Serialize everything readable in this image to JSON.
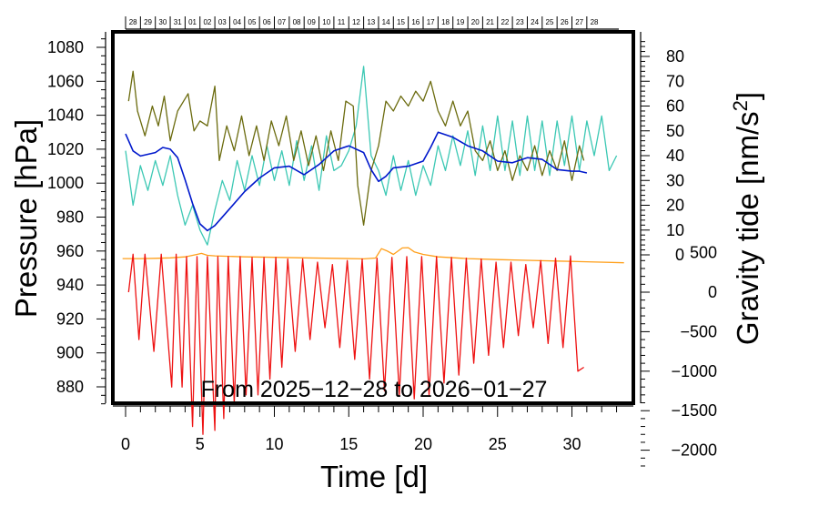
{
  "chart_data": {
    "type": "line",
    "title": "",
    "annotation": "From 2025−12−28 to 2026−01−27",
    "xlabel": "Time [d]",
    "ylabel_left": "Pressure [hPa]",
    "ylabel_right": "Gravity tide [nm/s2]",
    "xlim": [
      -0.6,
      33.6
    ],
    "x_ticks": [
      "0",
      "5",
      "10",
      "15",
      "20",
      "25",
      "30"
    ],
    "date_ticks": [
      "28",
      "29",
      "30",
      "31",
      "01",
      "02",
      "03",
      "04",
      "05",
      "06",
      "07",
      "08",
      "09",
      "10",
      "11",
      "12",
      "13",
      "14",
      "15",
      "16",
      "17",
      "18",
      "19",
      "20",
      "21",
      "22",
      "23",
      "24",
      "25",
      "26",
      "27",
      "28"
    ],
    "left_axis": {
      "ylim": [
        868,
        1088
      ],
      "ticks": [
        "880",
        "900",
        "920",
        "940",
        "960",
        "980",
        "1000",
        "1020",
        "1040",
        "1060",
        "1080"
      ]
    },
    "right_axis_upper": {
      "ylim": [
        0,
        80
      ],
      "ticks": [
        "0",
        "10",
        "20",
        "30",
        "40",
        "50",
        "60",
        "70",
        "80"
      ]
    },
    "right_axis_lower": {
      "ylim": [
        -2000,
        500
      ],
      "ticks": [
        "500",
        "0",
        "−500",
        "−1000",
        "−1500",
        "−2000"
      ]
    },
    "colors": {
      "pressure": "#0018cc",
      "noise_olive": "#6b6b0e",
      "noise_teal": "#3cc8b4",
      "orange": "#ff9f1a",
      "tide": "#ee1111",
      "frame": "#000000"
    },
    "series": [
      {
        "name": "pressure",
        "axis": "left",
        "x": [
          0,
          0.5,
          1,
          1.5,
          2,
          2.5,
          3,
          3.5,
          4,
          4.5,
          5,
          5.5,
          6,
          7,
          8,
          9,
          10,
          11,
          12,
          13,
          14,
          15,
          16,
          16.5,
          17,
          17.5,
          18,
          19,
          20,
          20.5,
          21,
          22,
          23,
          24,
          25,
          26,
          27,
          28,
          29,
          30,
          30.5,
          31
        ],
        "values": [
          1029,
          1019,
          1016,
          1017,
          1018,
          1021,
          1020,
          1015,
          1002,
          988,
          976,
          972,
          975,
          985,
          995,
          1003,
          1009,
          1010,
          1005,
          1011,
          1019,
          1022,
          1018,
          1008,
          1001,
          1004,
          1009,
          1010,
          1013,
          1021,
          1030,
          1027,
          1022,
          1019,
          1013,
          1012,
          1015,
          1014,
          1008,
          1007,
          1007,
          1006
        ]
      },
      {
        "name": "noise_olive",
        "axis": "right_upper",
        "x": [
          0.2,
          0.5,
          0.8,
          1.3,
          1.8,
          2.2,
          2.6,
          3,
          3.5,
          4.2,
          4.6,
          5,
          5.5,
          6,
          6.3,
          6.8,
          7.3,
          7.8,
          8.3,
          8.8,
          9.3,
          9.8,
          10.3,
          10.8,
          11.3,
          11.8,
          12.3,
          12.8,
          13.3,
          13.8,
          14.3,
          14.8,
          15.3,
          15.6,
          16,
          16.5,
          17,
          17.5,
          18,
          18.5,
          19,
          19.5,
          20,
          20.5,
          21,
          21.5,
          22,
          22.5,
          23,
          23.5,
          24,
          24.5,
          25,
          25.5,
          26,
          26.5,
          27,
          27.5,
          28,
          28.5,
          29,
          29.5,
          30,
          30.5,
          30.8
        ],
        "values": [
          62,
          74,
          58,
          48,
          60,
          52,
          64,
          46,
          58,
          65,
          50,
          54,
          52,
          68,
          38,
          52,
          42,
          56,
          40,
          52,
          38,
          54,
          44,
          56,
          38,
          50,
          36,
          48,
          34,
          50,
          38,
          62,
          60,
          28,
          12,
          34,
          44,
          62,
          58,
          64,
          60,
          66,
          62,
          70,
          58,
          52,
          62,
          52,
          58,
          42,
          38,
          46,
          34,
          42,
          30,
          40,
          34,
          44,
          32,
          42,
          34,
          46,
          30,
          44,
          38
        ]
      },
      {
        "name": "noise_teal",
        "axis": "right_upper",
        "x": [
          0,
          0.5,
          1,
          1.5,
          2,
          2.5,
          3,
          3.5,
          4,
          4.5,
          5,
          5.5,
          6,
          6.5,
          7,
          7.5,
          8,
          8.5,
          9,
          9.5,
          10,
          10.5,
          11,
          11.5,
          12,
          12.5,
          13,
          13.5,
          14,
          14.5,
          15,
          15.5,
          16,
          16.5,
          17,
          17.5,
          18,
          18.5,
          19,
          19.5,
          20,
          20.5,
          21,
          21.5,
          22,
          22.5,
          23,
          23.5,
          24,
          24.5,
          25,
          25.5,
          26,
          26.5,
          27,
          27.5,
          28,
          28.5,
          29,
          29.5,
          30,
          30.5,
          31,
          31.5,
          32,
          32.5,
          33
        ],
        "values": [
          42,
          20,
          36,
          26,
          38,
          28,
          40,
          24,
          12,
          20,
          10,
          4,
          18,
          30,
          22,
          38,
          26,
          40,
          28,
          44,
          30,
          42,
          28,
          46,
          30,
          44,
          26,
          48,
          34,
          36,
          42,
          52,
          76,
          40,
          34,
          24,
          40,
          26,
          38,
          24,
          36,
          28,
          44,
          34,
          48,
          36,
          50,
          32,
          52,
          34,
          56,
          34,
          54,
          32,
          56,
          34,
          54,
          32,
          54,
          36,
          56,
          34,
          54,
          40,
          56,
          34,
          40
        ]
      },
      {
        "name": "orange",
        "axis": "right_upper",
        "x": [
          -0.2,
          1,
          2,
          3,
          4,
          4.8,
          5.1,
          5.5,
          6,
          8,
          10,
          12,
          14,
          16,
          16.8,
          17.2,
          17.6,
          18,
          18.6,
          19,
          19.4,
          20,
          21,
          23,
          25,
          27,
          29,
          31,
          33.5
        ],
        "values": [
          -1.5,
          -1.5,
          -1.4,
          -1.2,
          -0.8,
          0.2,
          0.6,
          -0.2,
          -0.4,
          -0.8,
          -1,
          -1.2,
          -1.4,
          -1.6,
          -1.3,
          2.5,
          1.5,
          0.2,
          2.8,
          2.9,
          1.2,
          0.2,
          -0.8,
          -1.5,
          -1.9,
          -2.2,
          -2.5,
          -2.8,
          -3.2
        ]
      },
      {
        "name": "tide",
        "axis": "right_lower",
        "x": [
          0.2,
          0.5,
          0.9,
          1.3,
          1.9,
          2.4,
          3.1,
          3.4,
          3.8,
          4.1,
          4.5,
          4.8,
          5.2,
          5.5,
          6.0,
          6.2,
          6.6,
          6.9,
          7.3,
          7.7,
          8.1,
          8.5,
          8.9,
          9.3,
          9.7,
          10.1,
          10.5,
          10.9,
          11.4,
          11.9,
          12.4,
          12.9,
          13.4,
          13.9,
          14.4,
          14.9,
          15.4,
          15.9,
          16.4,
          16.9,
          17.4,
          17.9,
          18.4,
          18.9,
          19.4,
          19.9,
          20.4,
          20.9,
          21.4,
          21.9,
          22.4,
          22.9,
          23.4,
          23.9,
          24.4,
          24.9,
          25.4,
          25.9,
          26.4,
          26.9,
          27.4,
          27.9,
          28.4,
          28.9,
          29.4,
          29.9,
          30.4,
          30.8
        ],
        "values": [
          0,
          480,
          -600,
          480,
          -750,
          480,
          -1200,
          480,
          -1200,
          450,
          -1700,
          450,
          -1800,
          450,
          -1750,
          450,
          -1600,
          450,
          -1400,
          450,
          -1300,
          440,
          -1300,
          440,
          -1100,
          440,
          -950,
          420,
          -750,
          420,
          -600,
          380,
          -450,
          350,
          -700,
          400,
          -850,
          420,
          -1100,
          430,
          -1250,
          440,
          -1300,
          450,
          -1350,
          450,
          -1300,
          450,
          -1150,
          440,
          -1050,
          430,
          -900,
          420,
          -800,
          380,
          -700,
          380,
          -550,
          350,
          -450,
          400,
          -650,
          430,
          -700,
          460,
          -1000,
          -950
        ]
      }
    ]
  }
}
